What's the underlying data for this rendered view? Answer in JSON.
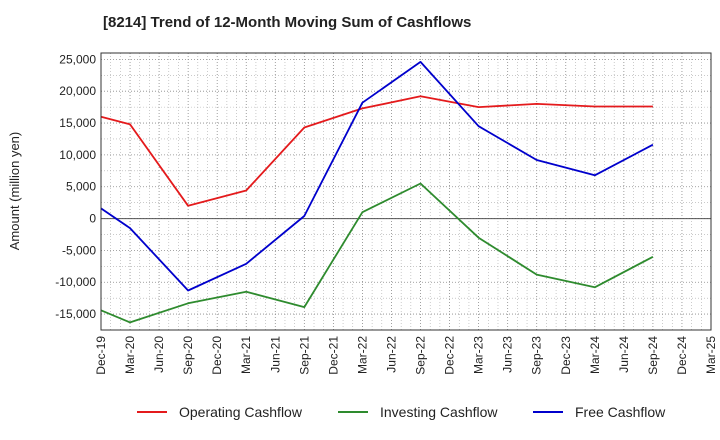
{
  "chart_data": {
    "type": "line",
    "title": "[8214]  Trend of 12-Month Moving Sum of Cashflows",
    "xlabel": "",
    "ylabel": "Amount (million yen)",
    "categories": [
      "Dec-19",
      "Mar-20",
      "Jun-20",
      "Sep-20",
      "Dec-20",
      "Mar-21",
      "Jun-21",
      "Sep-21",
      "Dec-21",
      "Mar-22",
      "Jun-22",
      "Sep-22",
      "Dec-22",
      "Mar-23",
      "Jun-23",
      "Sep-23",
      "Dec-23",
      "Mar-24",
      "Jun-24",
      "Sep-24",
      "Dec-24",
      "Mar-25"
    ],
    "ylim": [
      -17500,
      26000
    ],
    "yticks": [
      -15000,
      -10000,
      -5000,
      0,
      5000,
      10000,
      15000,
      20000,
      25000
    ],
    "ytick_labels": [
      "-15,000",
      "-10,000",
      "-5,000",
      "0",
      "5,000",
      "10,000",
      "15,000",
      "20,000",
      "25,000"
    ],
    "grid": true,
    "legend_position": "bottom",
    "series": [
      {
        "name": "Operating Cashflow",
        "color": "#e41a1c",
        "x": [
          "Dec-19",
          "Mar-20",
          "Sep-20",
          "Mar-21",
          "Sep-21",
          "Mar-22",
          "Sep-22",
          "Mar-23",
          "Sep-23",
          "Mar-24",
          "Sep-24"
        ],
        "values": [
          16000,
          14800,
          2000,
          4400,
          14300,
          17300,
          19200,
          17500,
          18000,
          17600,
          17600
        ]
      },
      {
        "name": "Investing Cashflow",
        "color": "#2e8b2e",
        "x": [
          "Dec-19",
          "Mar-20",
          "Sep-20",
          "Mar-21",
          "Sep-21",
          "Mar-22",
          "Sep-22",
          "Mar-23",
          "Sep-23",
          "Mar-24",
          "Sep-24"
        ],
        "values": [
          -14400,
          -16300,
          -13300,
          -11500,
          -13900,
          1000,
          5500,
          -3000,
          -8800,
          -10800,
          -6000
        ]
      },
      {
        "name": "Free Cashflow",
        "color": "#0000cc",
        "x": [
          "Dec-19",
          "Mar-20",
          "Sep-20",
          "Mar-21",
          "Sep-21",
          "Mar-22",
          "Sep-22",
          "Mar-23",
          "Sep-23",
          "Mar-24",
          "Sep-24"
        ],
        "values": [
          1600,
          -1500,
          -11300,
          -7100,
          400,
          18200,
          24600,
          14500,
          9200,
          6800,
          11600
        ]
      }
    ]
  }
}
